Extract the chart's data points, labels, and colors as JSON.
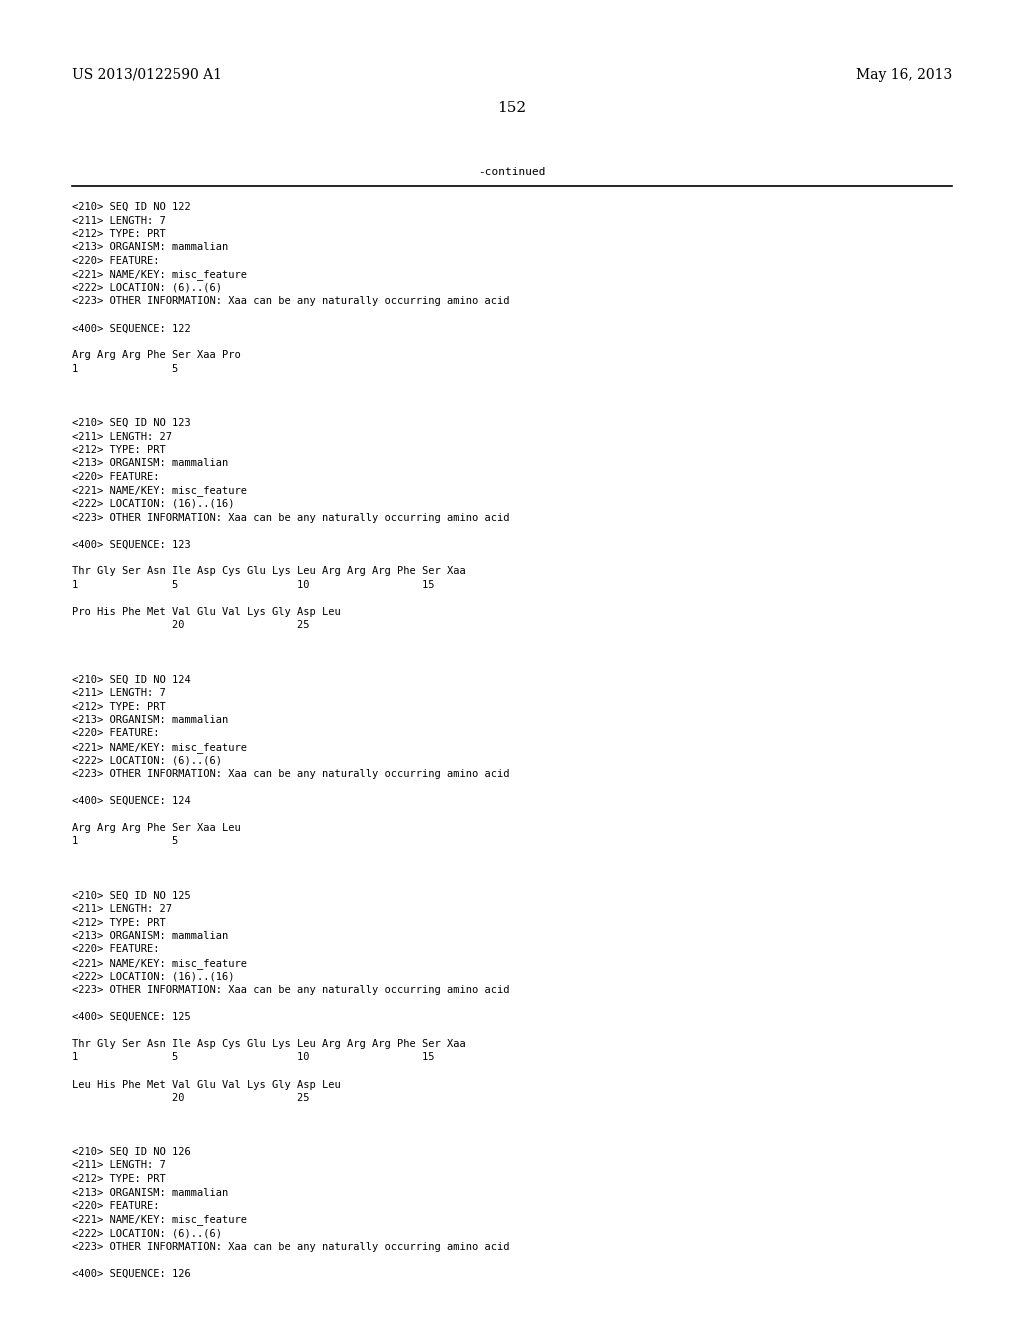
{
  "background_color": "#ffffff",
  "header_left": "US 2013/0122590 A1",
  "header_right": "May 16, 2013",
  "page_number": "152",
  "continued_label": "-continued",
  "monospace_font_size": 7.5,
  "header_font_size": 10.0,
  "page_num_font_size": 11.0,
  "content": [
    "<210> SEQ ID NO 122",
    "<211> LENGTH: 7",
    "<212> TYPE: PRT",
    "<213> ORGANISM: mammalian",
    "<220> FEATURE:",
    "<221> NAME/KEY: misc_feature",
    "<222> LOCATION: (6)..(6)",
    "<223> OTHER INFORMATION: Xaa can be any naturally occurring amino acid",
    "",
    "<400> SEQUENCE: 122",
    "",
    "Arg Arg Arg Phe Ser Xaa Pro",
    "1               5",
    "",
    "",
    "",
    "<210> SEQ ID NO 123",
    "<211> LENGTH: 27",
    "<212> TYPE: PRT",
    "<213> ORGANISM: mammalian",
    "<220> FEATURE:",
    "<221> NAME/KEY: misc_feature",
    "<222> LOCATION: (16)..(16)",
    "<223> OTHER INFORMATION: Xaa can be any naturally occurring amino acid",
    "",
    "<400> SEQUENCE: 123",
    "",
    "Thr Gly Ser Asn Ile Asp Cys Glu Lys Leu Arg Arg Arg Phe Ser Xaa",
    "1               5                   10                  15",
    "",
    "Pro His Phe Met Val Glu Val Lys Gly Asp Leu",
    "                20                  25",
    "",
    "",
    "",
    "<210> SEQ ID NO 124",
    "<211> LENGTH: 7",
    "<212> TYPE: PRT",
    "<213> ORGANISM: mammalian",
    "<220> FEATURE:",
    "<221> NAME/KEY: misc_feature",
    "<222> LOCATION: (6)..(6)",
    "<223> OTHER INFORMATION: Xaa can be any naturally occurring amino acid",
    "",
    "<400> SEQUENCE: 124",
    "",
    "Arg Arg Arg Phe Ser Xaa Leu",
    "1               5",
    "",
    "",
    "",
    "<210> SEQ ID NO 125",
    "<211> LENGTH: 27",
    "<212> TYPE: PRT",
    "<213> ORGANISM: mammalian",
    "<220> FEATURE:",
    "<221> NAME/KEY: misc_feature",
    "<222> LOCATION: (16)..(16)",
    "<223> OTHER INFORMATION: Xaa can be any naturally occurring amino acid",
    "",
    "<400> SEQUENCE: 125",
    "",
    "Thr Gly Ser Asn Ile Asp Cys Glu Lys Leu Arg Arg Arg Phe Ser Xaa",
    "1               5                   10                  15",
    "",
    "Leu His Phe Met Val Glu Val Lys Gly Asp Leu",
    "                20                  25",
    "",
    "",
    "",
    "<210> SEQ ID NO 126",
    "<211> LENGTH: 7",
    "<212> TYPE: PRT",
    "<213> ORGANISM: mammalian",
    "<220> FEATURE:",
    "<221> NAME/KEY: misc_feature",
    "<222> LOCATION: (6)..(6)",
    "<223> OTHER INFORMATION: Xaa can be any naturally occurring amino acid",
    "",
    "<400> SEQUENCE: 126"
  ]
}
